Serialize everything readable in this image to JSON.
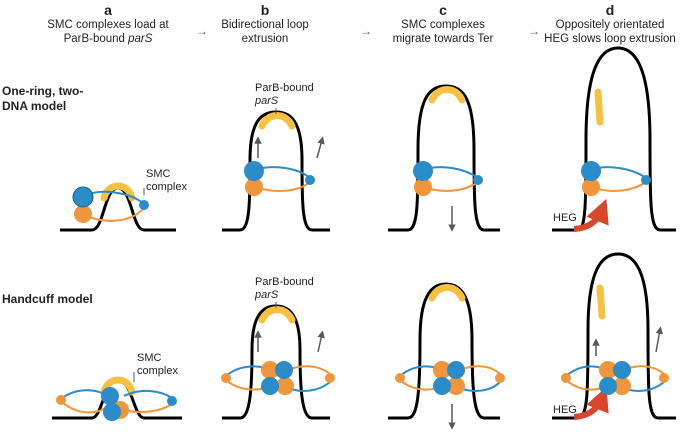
{
  "panels": [
    {
      "letter": "a",
      "title_line1": "SMC complexes load at",
      "title_line2_prefix": "ParB-bound ",
      "title_line2_italic": "parS"
    },
    {
      "letter": "b",
      "title_line1": "Bidirectional loop",
      "title_line2_prefix": "extrusion",
      "title_line2_italic": ""
    },
    {
      "letter": "c",
      "title_line1": "SMC complexes",
      "title_line2_prefix": "migrate towards Ter",
      "title_line2_italic": ""
    },
    {
      "letter": "d",
      "title_line1": "Oppositely orientated",
      "title_line2_prefix": "HEG slows loop extrusion",
      "title_line2_italic": ""
    }
  ],
  "rows": [
    {
      "label_line1": "One-ring, two-",
      "label_line2": "DNA model"
    },
    {
      "label_line1": "Handcuff model",
      "label_line2": ""
    }
  ],
  "labels": {
    "smc_line1": "SMC",
    "smc_line2": "complex",
    "parb_line1": "ParB-bound",
    "parb_line2": "parS",
    "heg": "HEG",
    "step_arrow": "→"
  },
  "colors": {
    "dna": "#000000",
    "parb": "#f7c13f",
    "smc_blue": "#2a8cc8",
    "smc_orange": "#f0953a",
    "heg": "#d9472b",
    "arrow": "#58595b"
  }
}
